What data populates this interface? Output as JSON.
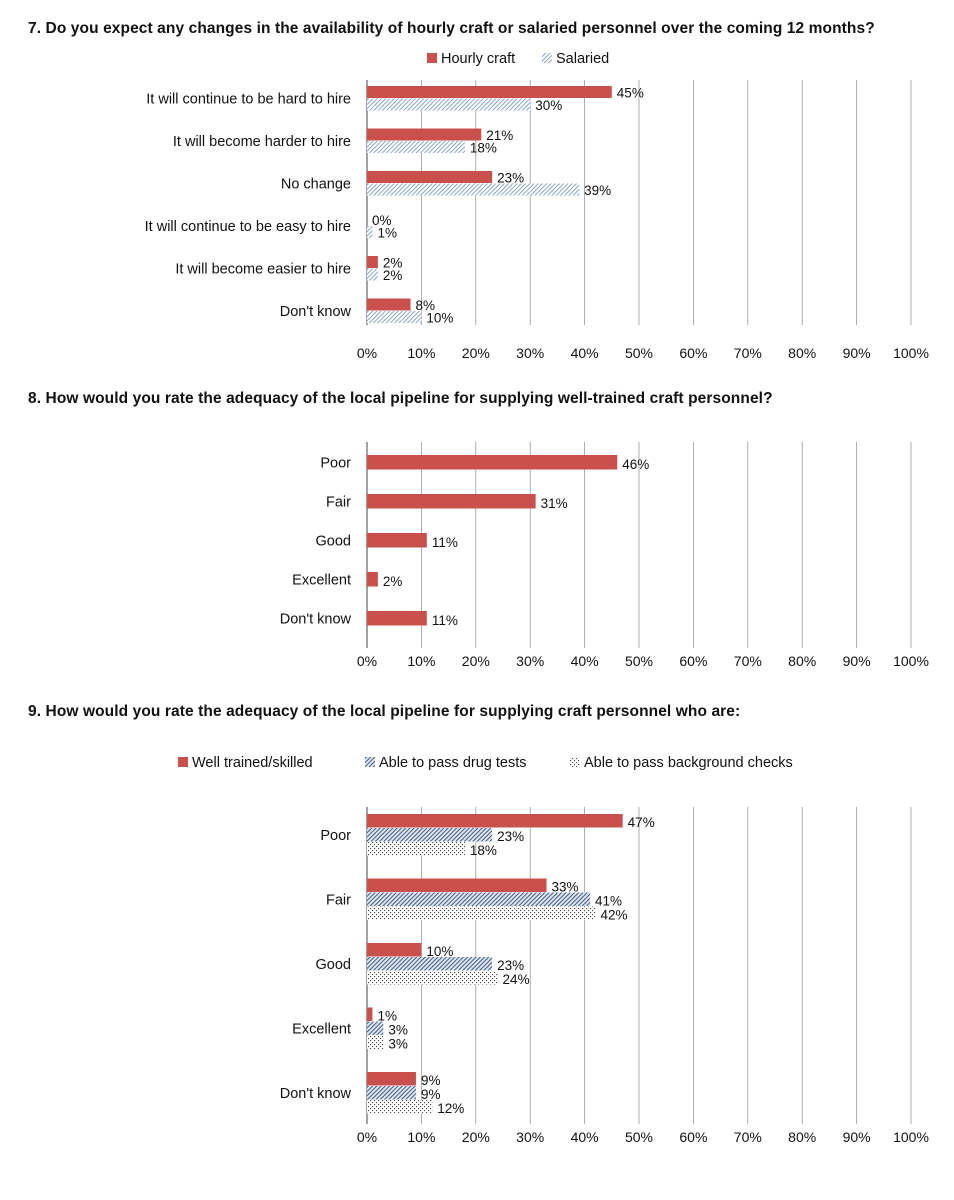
{
  "colors": {
    "hourly": "#c9504c",
    "salaried_stroke": "#6a91c0",
    "drug_stroke": "#2f4a78",
    "background_stroke": "#444444",
    "grid": "#9a9a9a"
  },
  "chart_data": [
    {
      "type": "bar",
      "orientation": "horizontal",
      "title": "7. Do you expect any changes in the availability of hourly craft or salaried personnel over the coming 12 months?",
      "categories": [
        "It will continue to be hard to hire",
        "It will become harder to hire",
        "No change",
        "It will continue to be easy to hire",
        "It will become easier to hire",
        "Don't know"
      ],
      "series": [
        {
          "name": "Hourly craft",
          "pattern": "solid",
          "values": [
            45,
            21,
            23,
            0,
            2,
            8
          ],
          "labels": [
            "45%",
            "21%",
            "23%",
            "0%",
            "2%",
            "8%"
          ]
        },
        {
          "name": "Salaried",
          "pattern": "diagonal-light",
          "values": [
            30,
            18,
            39,
            1,
            2,
            10
          ],
          "labels": [
            "30%",
            "18%",
            "39%",
            "1%",
            "2%",
            "10%"
          ]
        }
      ],
      "x_ticks": [
        "0%",
        "10%",
        "20%",
        "30%",
        "40%",
        "50%",
        "60%",
        "70%",
        "80%",
        "90%",
        "100%"
      ],
      "xlim": [
        0,
        100
      ],
      "grid": "vertical",
      "legend_position": "top"
    },
    {
      "type": "bar",
      "orientation": "horizontal",
      "title": "8. How would you rate the adequacy of the local pipeline for supplying well-trained craft personnel?",
      "categories": [
        "Poor",
        "Fair",
        "Good",
        "Excellent",
        "Don't know"
      ],
      "series": [
        {
          "pattern": "solid",
          "values": [
            46,
            31,
            11,
            2,
            11
          ],
          "labels": [
            "46%",
            "31%",
            "11%",
            "2%",
            "11%"
          ]
        }
      ],
      "x_ticks": [
        "0%",
        "10%",
        "20%",
        "30%",
        "40%",
        "50%",
        "60%",
        "70%",
        "80%",
        "90%",
        "100%"
      ],
      "xlim": [
        0,
        100
      ],
      "grid": "vertical"
    },
    {
      "type": "bar",
      "orientation": "horizontal",
      "title": "9. How would you rate the adequacy of the local pipeline for supplying craft personnel who are:",
      "categories": [
        "Poor",
        "Fair",
        "Good",
        "Excellent",
        "Don't know"
      ],
      "series": [
        {
          "name": "Well trained/skilled",
          "pattern": "solid",
          "values": [
            47,
            33,
            10,
            1,
            9
          ],
          "labels": [
            "47%",
            "33%",
            "10%",
            "1%",
            "9%"
          ]
        },
        {
          "name": "Able to pass drug tests",
          "pattern": "diagonal-dark",
          "values": [
            23,
            41,
            23,
            3,
            9
          ],
          "labels": [
            "23%",
            "41%",
            "23%",
            "3%",
            "9%"
          ]
        },
        {
          "name": "Able to pass background checks",
          "pattern": "dotted",
          "values": [
            18,
            42,
            24,
            3,
            12
          ],
          "labels": [
            "18%",
            "42%",
            "24%",
            "3%",
            "12%"
          ]
        }
      ],
      "x_ticks": [
        "0%",
        "10%",
        "20%",
        "30%",
        "40%",
        "50%",
        "60%",
        "70%",
        "80%",
        "90%",
        "100%"
      ],
      "xlim": [
        0,
        100
      ],
      "grid": "vertical",
      "legend_position": "top"
    }
  ]
}
